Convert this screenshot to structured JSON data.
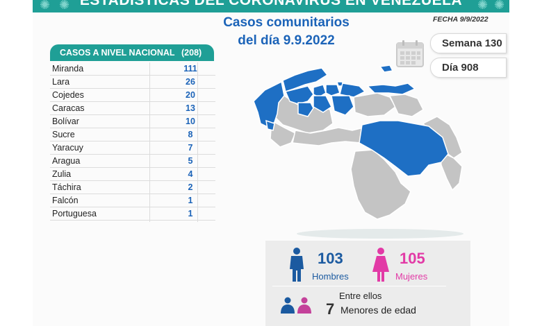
{
  "banner": {
    "title": "ESTADÍSTICAS DEL CORONAVIRUS EN VENEZUELA"
  },
  "headline": {
    "line1": "Casos comunitarios",
    "line2": "del día 9.9.2022"
  },
  "fecha": "FECHA 9/9/2022",
  "semana": "Semana 130",
  "dia": "Día 908",
  "national": {
    "label": "CASOS A NIVEL NACIONAL",
    "total": "(208)",
    "rows": [
      {
        "state": "Miranda",
        "cases": "111"
      },
      {
        "state": "Lara",
        "cases": "26"
      },
      {
        "state": "Cojedes",
        "cases": "20"
      },
      {
        "state": "Caracas",
        "cases": "13"
      },
      {
        "state": "Bolívar",
        "cases": "10"
      },
      {
        "state": "Sucre",
        "cases": "8"
      },
      {
        "state": "Yaracuy",
        "cases": "7"
      },
      {
        "state": "Aragua",
        "cases": "5"
      },
      {
        "state": "Zulia",
        "cases": "4"
      },
      {
        "state": "Táchira",
        "cases": "2"
      },
      {
        "state": "Falcón",
        "cases": "1"
      },
      {
        "state": "Portuguesa",
        "cases": "1"
      }
    ]
  },
  "demographics": {
    "men_count": "103",
    "men_label": "Hombres",
    "women_count": "105",
    "women_label": "Mujeres",
    "entre_label": "Entre ellos",
    "minors_count": "7",
    "minors_label": "Menores de edad"
  },
  "colors": {
    "teal": "#1f9f96",
    "blue": "#1b63b8",
    "pink": "#e23aa6",
    "map_highlight": "#1e6fc4",
    "map_gray": "#c4c4c4"
  },
  "icons": [
    "virus-icon",
    "calendar-icon",
    "man-icon",
    "woman-icon",
    "boy-icon",
    "girl-icon",
    "venezuela-map"
  ]
}
